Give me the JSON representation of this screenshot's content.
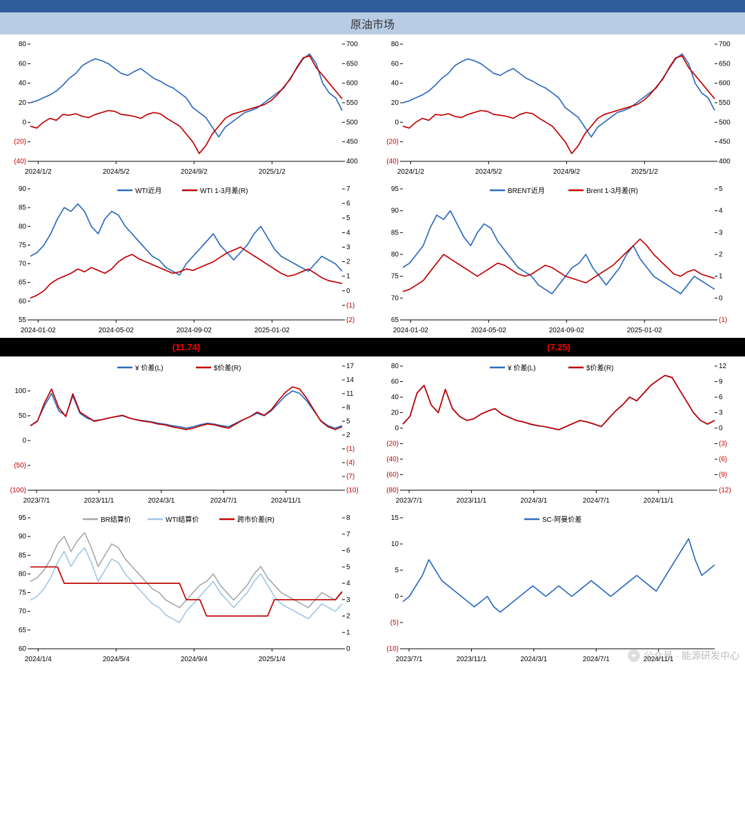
{
  "colors": {
    "header": "#2e5b9a",
    "title_bg": "#b8cce4",
    "blue": "#2e6bbf",
    "red": "#c00000",
    "light_blue": "#9fc5e8",
    "gray": "#a6a6a6",
    "black": "#000000",
    "grid": "#d9d9d9"
  },
  "title": "原油市场",
  "values_row": {
    "left": "(11.74)",
    "right": "(7.25)"
  },
  "watermark": "公众号 · 能源研发中心",
  "chart1": {
    "left_ticks": [
      -40,
      -20,
      0,
      20,
      40,
      60,
      80
    ],
    "right_ticks": [
      400,
      450,
      500,
      550,
      600,
      650,
      700
    ],
    "x_labels": [
      "2024/1/2",
      "2024/5/2",
      "2024/9/2",
      "2025/1/2"
    ],
    "blue": [
      20,
      22,
      25,
      28,
      32,
      38,
      45,
      50,
      58,
      62,
      65,
      63,
      60,
      55,
      50,
      48,
      52,
      55,
      50,
      45,
      42,
      38,
      35,
      30,
      25,
      15,
      10,
      5,
      -5,
      -15,
      -5,
      0,
      5,
      10,
      12,
      15,
      20,
      25,
      30,
      35,
      45,
      55,
      65,
      70,
      60,
      40,
      30,
      25,
      12
    ],
    "red": [
      490,
      485,
      500,
      510,
      505,
      520,
      518,
      522,
      515,
      512,
      520,
      525,
      530,
      528,
      520,
      518,
      515,
      510,
      520,
      525,
      522,
      510,
      500,
      490,
      470,
      450,
      420,
      440,
      470,
      490,
      510,
      520,
      525,
      530,
      535,
      540,
      545,
      555,
      570,
      590,
      610,
      640,
      665,
      670,
      640,
      620,
      600,
      580,
      560
    ],
    "left_range": [
      -40,
      80
    ],
    "right_range": [
      400,
      700
    ]
  },
  "chart3": {
    "legend": [
      "WTI近月",
      "WTI 1-3月差(R)"
    ],
    "left_ticks": [
      55,
      60,
      65,
      70,
      75,
      80,
      85,
      90
    ],
    "right_ticks": [
      -2,
      -1,
      0,
      1,
      2,
      3,
      4,
      5,
      6,
      7
    ],
    "x_labels": [
      "2024-01-02",
      "2024-05-02",
      "2024-09-02",
      "2025-01-02"
    ],
    "blue": [
      72,
      73,
      75,
      78,
      82,
      85,
      84,
      86,
      84,
      80,
      78,
      82,
      84,
      83,
      80,
      78,
      76,
      74,
      72,
      71,
      69,
      68,
      67,
      70,
      72,
      74,
      76,
      78,
      75,
      73,
      71,
      73,
      75,
      78,
      80,
      77,
      74,
      72,
      71,
      70,
      69,
      68,
      70,
      72,
      71,
      70,
      68
    ],
    "red": [
      -0.5,
      -0.3,
      0,
      0.5,
      0.8,
      1,
      1.2,
      1.5,
      1.3,
      1.6,
      1.4,
      1.2,
      1.5,
      2,
      2.3,
      2.5,
      2.2,
      2,
      1.8,
      1.6,
      1.4,
      1.2,
      1.3,
      1.5,
      1.4,
      1.6,
      1.8,
      2,
      2.3,
      2.6,
      2.8,
      3,
      2.7,
      2.4,
      2.1,
      1.8,
      1.5,
      1.2,
      1,
      1.1,
      1.3,
      1.5,
      1.2,
      0.9,
      0.7,
      0.6,
      0.5
    ],
    "left_range": [
      55,
      90
    ],
    "right_range": [
      -2,
      7
    ]
  },
  "chart4": {
    "legend": [
      "BRENT近月",
      "Brent 1-3月差(R)"
    ],
    "left_ticks": [
      65,
      70,
      75,
      80,
      85,
      90,
      95
    ],
    "right_ticks": [
      -1,
      0,
      1,
      2,
      3,
      4,
      5
    ],
    "x_labels": [
      "2024-01-02",
      "2024-05-02",
      "2024-09-02",
      "2025-01-02"
    ],
    "blue": [
      77,
      78,
      80,
      82,
      86,
      89,
      88,
      90,
      87,
      84,
      82,
      85,
      87,
      86,
      83,
      81,
      79,
      77,
      76,
      75,
      73,
      72,
      71,
      73,
      75,
      77,
      78,
      80,
      77,
      75,
      73,
      75,
      77,
      80,
      82,
      79,
      77,
      75,
      74,
      73,
      72,
      71,
      73,
      75,
      74,
      73,
      72
    ],
    "red": [
      0.3,
      0.4,
      0.6,
      0.8,
      1.2,
      1.6,
      2,
      1.8,
      1.6,
      1.4,
      1.2,
      1,
      1.2,
      1.4,
      1.6,
      1.5,
      1.3,
      1.1,
      1,
      1.1,
      1.3,
      1.5,
      1.4,
      1.2,
      1,
      0.9,
      0.8,
      0.7,
      0.9,
      1.1,
      1.3,
      1.5,
      1.8,
      2.1,
      2.4,
      2.7,
      2.4,
      2,
      1.7,
      1.4,
      1.1,
      1,
      1.2,
      1.3,
      1.1,
      1,
      0.9
    ],
    "left_range": [
      65,
      95
    ],
    "right_range": [
      -1,
      5
    ]
  },
  "chart5": {
    "legend": [
      "¥ 价差(L)",
      "$价差(R)"
    ],
    "left_ticks": [
      -100,
      -50,
      0,
      50,
      100
    ],
    "right_ticks": [
      -10,
      -7,
      -4,
      -1,
      2,
      5,
      8,
      11,
      14,
      17
    ],
    "x_labels": [
      "2023/7/1",
      "2023/11/1",
      "2024/3/1",
      "2024/7/1",
      "2024/11/1"
    ],
    "blue": [
      30,
      40,
      70,
      95,
      60,
      50,
      90,
      55,
      45,
      40,
      42,
      45,
      48,
      50,
      45,
      42,
      40,
      38,
      35,
      33,
      30,
      28,
      25,
      28,
      32,
      35,
      33,
      30,
      28,
      35,
      42,
      48,
      55,
      50,
      60,
      75,
      90,
      100,
      95,
      80,
      60,
      40,
      30,
      25,
      30
    ],
    "red": [
      4,
      5,
      9,
      12,
      8,
      6,
      11,
      7,
      6,
      5,
      5.3,
      5.7,
      6,
      6.3,
      5.7,
      5.3,
      5,
      4.8,
      4.4,
      4.2,
      3.8,
      3.5,
      3.2,
      3.5,
      4,
      4.4,
      4.2,
      3.8,
      3.5,
      4.4,
      5.3,
      6,
      7,
      6.3,
      7.5,
      9.5,
      11.3,
      12.5,
      12,
      10,
      7.5,
      5,
      3.8,
      3.2,
      3.8
    ],
    "left_range": [
      -100,
      150
    ],
    "right_range": [
      -10,
      17
    ]
  },
  "chart6": {
    "legend": [
      "¥ 价差(L)",
      "$价差(R)"
    ],
    "left_ticks": [
      -80,
      -60,
      -40,
      -20,
      0,
      20,
      40,
      60,
      80
    ],
    "right_ticks": [
      -12,
      -9,
      -6,
      -3,
      0,
      3,
      6,
      9,
      12
    ],
    "x_labels": [
      "2023/7/1",
      "2023/11/1",
      "2024/3/1",
      "2024/7/1",
      "2024/11/1"
    ],
    "blue": [
      5,
      15,
      45,
      55,
      30,
      20,
      50,
      25,
      15,
      10,
      12,
      18,
      22,
      25,
      18,
      14,
      10,
      8,
      5,
      3,
      2,
      0,
      -2,
      2,
      6,
      10,
      8,
      5,
      2,
      12,
      22,
      30,
      40,
      35,
      45,
      55,
      62,
      68,
      65,
      50,
      35,
      20,
      10,
      5,
      10
    ],
    "red": [
      0.8,
      2.3,
      6.8,
      8.3,
      4.5,
      3,
      7.5,
      3.8,
      2.3,
      1.5,
      1.8,
      2.7,
      3.3,
      3.8,
      2.7,
      2.1,
      1.5,
      1.2,
      0.8,
      0.5,
      0.3,
      0,
      -0.3,
      0.3,
      0.9,
      1.5,
      1.2,
      0.8,
      0.3,
      1.8,
      3.3,
      4.5,
      6,
      5.3,
      6.8,
      8.3,
      9.3,
      10.2,
      9.8,
      7.5,
      5.3,
      3,
      1.5,
      0.8,
      1.5
    ],
    "left_range": [
      -80,
      80
    ],
    "right_range": [
      -12,
      12
    ]
  },
  "chart7": {
    "legend": [
      "BR结算价",
      "WTI结算价",
      "跨市价差(R)"
    ],
    "left_ticks": [
      60,
      65,
      70,
      75,
      80,
      85,
      90,
      95
    ],
    "right_ticks": [
      0,
      1,
      2,
      3,
      4,
      5,
      6,
      7,
      8
    ],
    "x_labels": [
      "2024/1/4",
      "2024/5/4",
      "2024/9/4",
      "2025/1/4"
    ],
    "gray": [
      78,
      79,
      81,
      84,
      88,
      90,
      86,
      89,
      91,
      87,
      82,
      85,
      88,
      87,
      84,
      82,
      80,
      78,
      76,
      75,
      73,
      72,
      71,
      73,
      75,
      77,
      78,
      80,
      77,
      75,
      73,
      75,
      77,
      80,
      82,
      79,
      77,
      75,
      74,
      73,
      72,
      71,
      73,
      75,
      74,
      73,
      75
    ],
    "lblue": [
      73,
      74,
      76,
      79,
      83,
      86,
      82,
      85,
      87,
      83,
      78,
      81,
      84,
      83,
      80,
      78,
      76,
      74,
      72,
      71,
      69,
      68,
      67,
      70,
      72,
      74,
      76,
      78,
      75,
      73,
      71,
      73,
      75,
      78,
      80,
      77,
      74,
      72,
      71,
      70,
      69,
      68,
      70,
      72,
      71,
      70,
      72
    ],
    "red": [
      5,
      5,
      5,
      5,
      5,
      4,
      4,
      4,
      4,
      4,
      4,
      4,
      4,
      4,
      4,
      4,
      4,
      4,
      4,
      4,
      4,
      4,
      4,
      3,
      3,
      3,
      2,
      2,
      2,
      2,
      2,
      2,
      2,
      2,
      2,
      2,
      3,
      3,
      3,
      3,
      3,
      3,
      3,
      3,
      3,
      3,
      3.5
    ],
    "left_range": [
      60,
      95
    ],
    "right_range": [
      0,
      8
    ]
  },
  "chart8": {
    "legend": [
      "SC-阿曼价差"
    ],
    "left_ticks": [
      -10,
      -5,
      0,
      5,
      10,
      15
    ],
    "x_labels": [
      "2023/7/1",
      "2023/11/1",
      "2024/3/1",
      "2024/7/1",
      "2024/11/1"
    ],
    "blue": [
      -1,
      0,
      2,
      4,
      7,
      5,
      3,
      2,
      1,
      0,
      -1,
      -2,
      -1,
      0,
      -2,
      -3,
      -2,
      -1,
      0,
      1,
      2,
      1,
      0,
      1,
      2,
      1,
      0,
      1,
      2,
      3,
      2,
      1,
      0,
      1,
      2,
      3,
      4,
      3,
      2,
      1,
      3,
      5,
      7,
      9,
      11,
      7,
      4,
      5,
      6
    ],
    "left_range": [
      -10,
      15
    ]
  }
}
